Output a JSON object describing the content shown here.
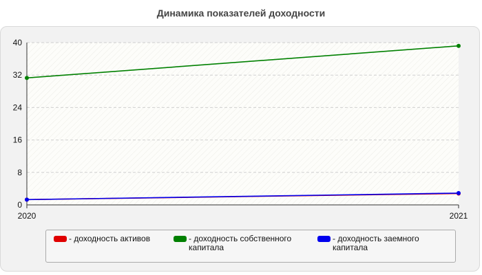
{
  "title": "Динамика показателей доходности",
  "chart_data": {
    "type": "line",
    "title": "Динамика показателей доходности",
    "x": [
      "2020",
      "2021"
    ],
    "ylim": [
      0,
      40
    ],
    "yticks": [
      0,
      8,
      16,
      24,
      32,
      40
    ],
    "grid": true,
    "legend_position": "bottom",
    "series": [
      {
        "name": "- доходность активов",
        "color": "#e00000",
        "values": [
          1.3,
          2.8
        ]
      },
      {
        "name": "- доходность собственного капитала",
        "color": "#008000",
        "values": [
          31.3,
          39.2
        ]
      },
      {
        "name": "- доходность заемного капитала",
        "color": "#0000ee",
        "values": [
          1.3,
          2.9
        ]
      }
    ]
  }
}
